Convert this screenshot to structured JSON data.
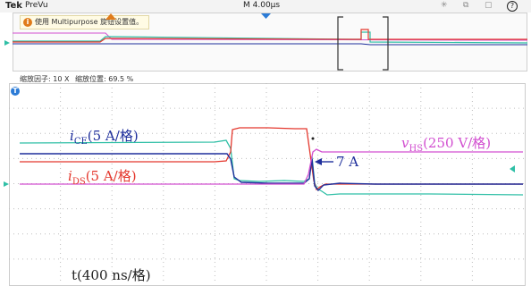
{
  "topbar": {
    "brand": "Tek",
    "mode": "PreVu",
    "timebase": "M 4.00μs",
    "help_symbol": "?"
  },
  "overview": {
    "tip_text": "使用 Multipurpose 旋钮设置值。",
    "tip_icon": "info-icon"
  },
  "zoom": {
    "factor": "缩放因子: 10 X",
    "position": "缩放位置: 69.5 %"
  },
  "annotations": {
    "ice_var": "i",
    "ice_sub": "CE",
    "ice_unit": "(5 A/格)",
    "ids_var": "i",
    "ids_sub": "DS",
    "ids_unit": "(5 A/格)",
    "vhs_var": "v",
    "vhs_sub": "HS",
    "vhs_unit": "(250 V/格)",
    "peak": "7 A",
    "time": "t(400 ns/格)"
  },
  "colors": {
    "ch_cyan": "#2fbfa6",
    "ch_red": "#e4382e",
    "ch_blue": "#1f2f9c",
    "ch_magenta": "#d24fd0",
    "trigger": "#2b7bd6"
  },
  "icons": [
    "info-icon",
    "trigger-icon",
    "help-icon",
    "ground-marker-icon",
    "trigger-level-marker-icon"
  ]
}
